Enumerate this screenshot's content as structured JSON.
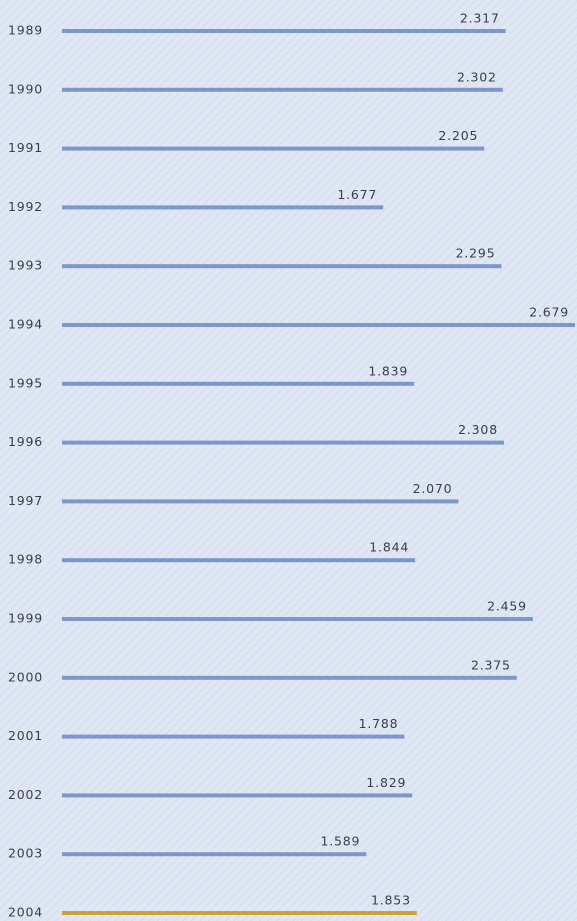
{
  "chart_data": {
    "type": "bar",
    "orientation": "horizontal",
    "categories": [
      "1989",
      "1990",
      "1991",
      "1992",
      "1993",
      "1994",
      "1995",
      "1996",
      "1997",
      "1998",
      "1999",
      "2000",
      "2001",
      "2002",
      "2003",
      "2004"
    ],
    "values": [
      2.317,
      2.302,
      2.205,
      1.677,
      2.295,
      2.679,
      1.839,
      2.308,
      2.07,
      1.844,
      2.459,
      2.375,
      1.788,
      1.829,
      1.589,
      1.853
    ],
    "value_labels": [
      "2.317",
      "2.302",
      "2.205",
      "1.677",
      "2.295",
      "2.679",
      "1.839",
      "2.308",
      "2.070",
      "1.844",
      "2.459",
      "2.375",
      "1.788",
      "1.829",
      "1.589",
      "1.853"
    ],
    "colors": [
      "#7f96cb",
      "#7f96cb",
      "#7f96cb",
      "#7f96cb",
      "#7f96cb",
      "#7f96cb",
      "#7f96cb",
      "#7f96cb",
      "#7f96cb",
      "#7f96cb",
      "#7f96cb",
      "#7f96cb",
      "#7f96cb",
      "#7f96cb",
      "#7f96cb",
      "#c9a23a"
    ]
  }
}
